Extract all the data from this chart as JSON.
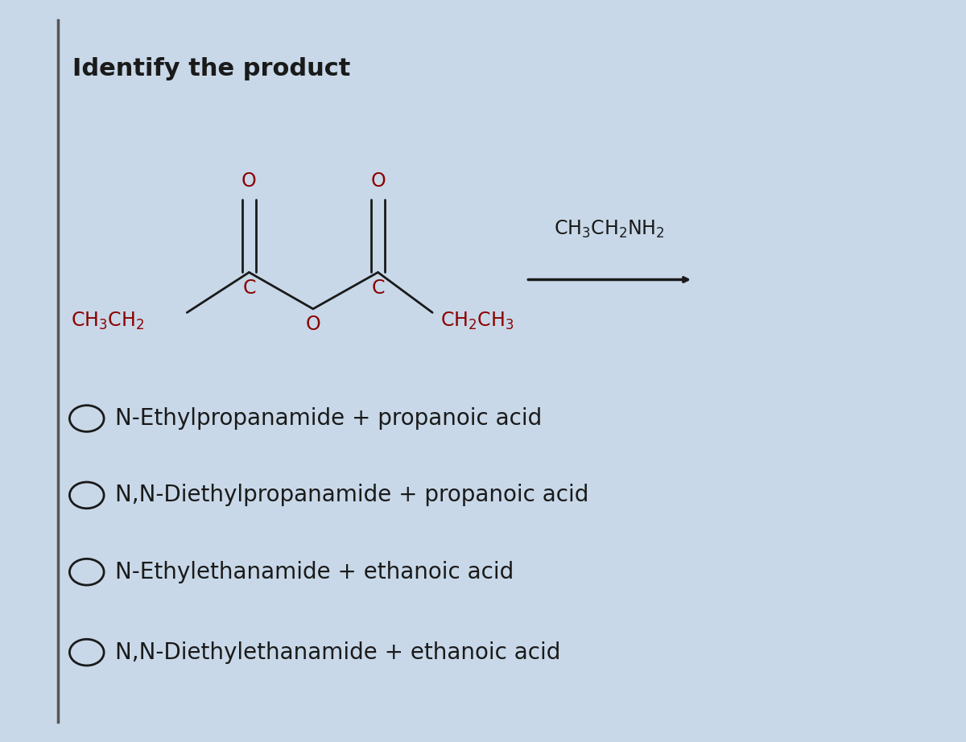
{
  "title": "Identify the product",
  "title_fontsize": 22,
  "title_fontweight": "bold",
  "background_color": "#c8d8e8",
  "text_color": "#1a1a1a",
  "molecule_color": "#8b0000",
  "molecule_black": "#1a1a1a",
  "options": [
    "N-Ethylpropanamide + propanoic acid",
    "N,N-Diethylpropanamide + propanoic acid",
    "N-Ethylethanamide + ethanoic acid",
    "N,N-Diethylethanamide + ethanoic acid"
  ],
  "option_fontsize": 20,
  "reagent_above_arrow": "CH₃CH₂NH₂"
}
